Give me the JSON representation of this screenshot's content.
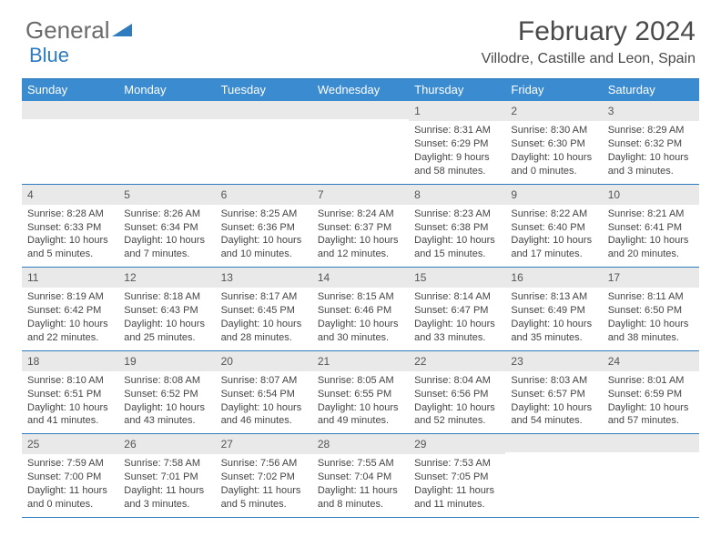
{
  "brand": {
    "part1": "General",
    "part2": "Blue"
  },
  "title": "February 2024",
  "location": "Villodre, Castille and Leon, Spain",
  "colors": {
    "header_bar": "#3b8bd0",
    "rule": "#2e7bc0",
    "daynum_bg": "#e9e9e9",
    "text": "#444444",
    "logo_gray": "#6b6b6b",
    "logo_blue": "#2e7bc0"
  },
  "dow": [
    "Sunday",
    "Monday",
    "Tuesday",
    "Wednesday",
    "Thursday",
    "Friday",
    "Saturday"
  ],
  "weeks": [
    [
      null,
      null,
      null,
      null,
      {
        "n": "1",
        "sr": "8:31 AM",
        "ss": "6:29 PM",
        "dl": "9 hours and 58 minutes."
      },
      {
        "n": "2",
        "sr": "8:30 AM",
        "ss": "6:30 PM",
        "dl": "10 hours and 0 minutes."
      },
      {
        "n": "3",
        "sr": "8:29 AM",
        "ss": "6:32 PM",
        "dl": "10 hours and 3 minutes."
      }
    ],
    [
      {
        "n": "4",
        "sr": "8:28 AM",
        "ss": "6:33 PM",
        "dl": "10 hours and 5 minutes."
      },
      {
        "n": "5",
        "sr": "8:26 AM",
        "ss": "6:34 PM",
        "dl": "10 hours and 7 minutes."
      },
      {
        "n": "6",
        "sr": "8:25 AM",
        "ss": "6:36 PM",
        "dl": "10 hours and 10 minutes."
      },
      {
        "n": "7",
        "sr": "8:24 AM",
        "ss": "6:37 PM",
        "dl": "10 hours and 12 minutes."
      },
      {
        "n": "8",
        "sr": "8:23 AM",
        "ss": "6:38 PM",
        "dl": "10 hours and 15 minutes."
      },
      {
        "n": "9",
        "sr": "8:22 AM",
        "ss": "6:40 PM",
        "dl": "10 hours and 17 minutes."
      },
      {
        "n": "10",
        "sr": "8:21 AM",
        "ss": "6:41 PM",
        "dl": "10 hours and 20 minutes."
      }
    ],
    [
      {
        "n": "11",
        "sr": "8:19 AM",
        "ss": "6:42 PM",
        "dl": "10 hours and 22 minutes."
      },
      {
        "n": "12",
        "sr": "8:18 AM",
        "ss": "6:43 PM",
        "dl": "10 hours and 25 minutes."
      },
      {
        "n": "13",
        "sr": "8:17 AM",
        "ss": "6:45 PM",
        "dl": "10 hours and 28 minutes."
      },
      {
        "n": "14",
        "sr": "8:15 AM",
        "ss": "6:46 PM",
        "dl": "10 hours and 30 minutes."
      },
      {
        "n": "15",
        "sr": "8:14 AM",
        "ss": "6:47 PM",
        "dl": "10 hours and 33 minutes."
      },
      {
        "n": "16",
        "sr": "8:13 AM",
        "ss": "6:49 PM",
        "dl": "10 hours and 35 minutes."
      },
      {
        "n": "17",
        "sr": "8:11 AM",
        "ss": "6:50 PM",
        "dl": "10 hours and 38 minutes."
      }
    ],
    [
      {
        "n": "18",
        "sr": "8:10 AM",
        "ss": "6:51 PM",
        "dl": "10 hours and 41 minutes."
      },
      {
        "n": "19",
        "sr": "8:08 AM",
        "ss": "6:52 PM",
        "dl": "10 hours and 43 minutes."
      },
      {
        "n": "20",
        "sr": "8:07 AM",
        "ss": "6:54 PM",
        "dl": "10 hours and 46 minutes."
      },
      {
        "n": "21",
        "sr": "8:05 AM",
        "ss": "6:55 PM",
        "dl": "10 hours and 49 minutes."
      },
      {
        "n": "22",
        "sr": "8:04 AM",
        "ss": "6:56 PM",
        "dl": "10 hours and 52 minutes."
      },
      {
        "n": "23",
        "sr": "8:03 AM",
        "ss": "6:57 PM",
        "dl": "10 hours and 54 minutes."
      },
      {
        "n": "24",
        "sr": "8:01 AM",
        "ss": "6:59 PM",
        "dl": "10 hours and 57 minutes."
      }
    ],
    [
      {
        "n": "25",
        "sr": "7:59 AM",
        "ss": "7:00 PM",
        "dl": "11 hours and 0 minutes."
      },
      {
        "n": "26",
        "sr": "7:58 AM",
        "ss": "7:01 PM",
        "dl": "11 hours and 3 minutes."
      },
      {
        "n": "27",
        "sr": "7:56 AM",
        "ss": "7:02 PM",
        "dl": "11 hours and 5 minutes."
      },
      {
        "n": "28",
        "sr": "7:55 AM",
        "ss": "7:04 PM",
        "dl": "11 hours and 8 minutes."
      },
      {
        "n": "29",
        "sr": "7:53 AM",
        "ss": "7:05 PM",
        "dl": "11 hours and 11 minutes."
      },
      null,
      null
    ]
  ],
  "labels": {
    "sunrise": "Sunrise: ",
    "sunset": "Sunset: ",
    "daylight": "Daylight: "
  }
}
